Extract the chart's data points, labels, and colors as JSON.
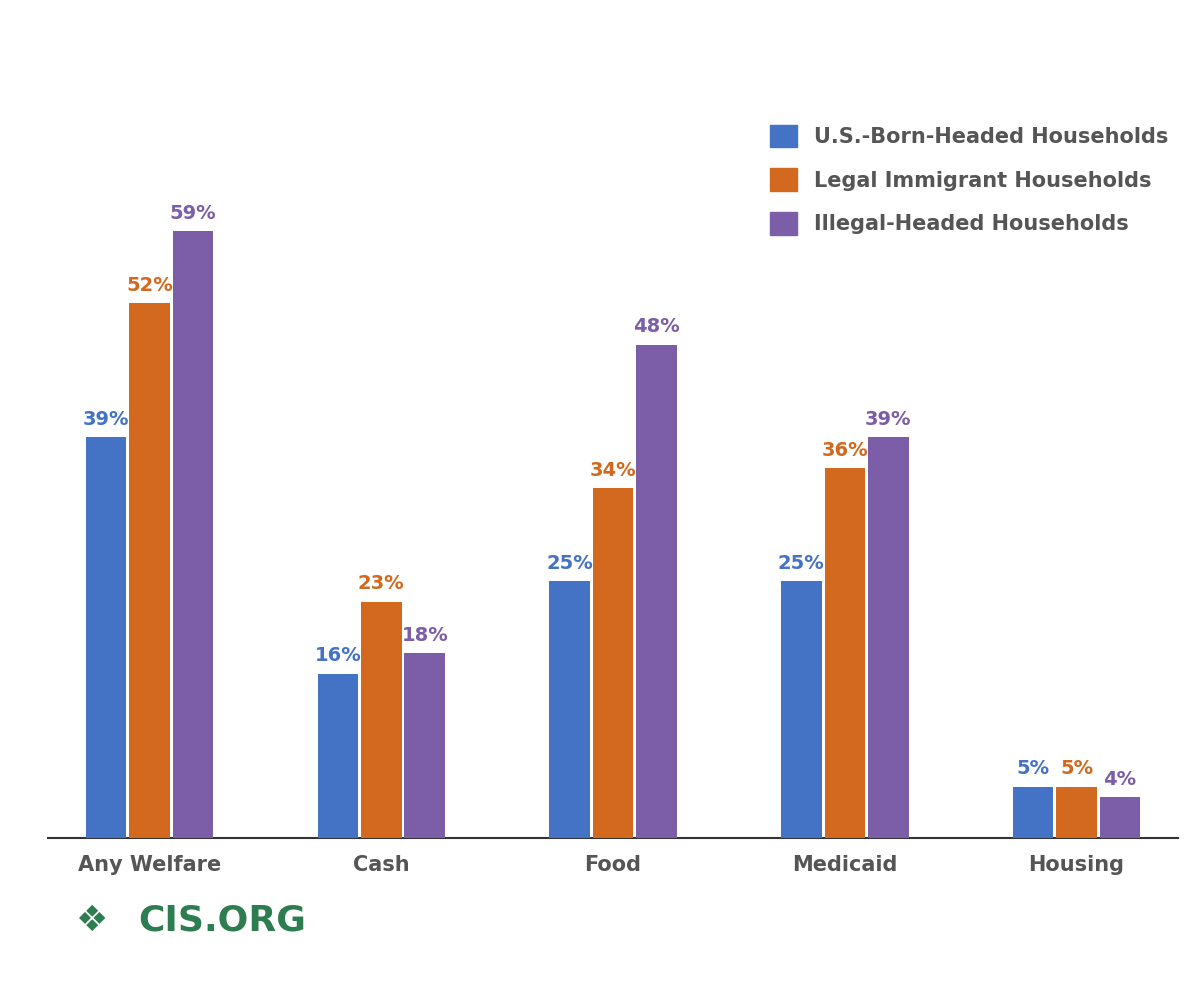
{
  "categories": [
    "Any Welfare",
    "Cash",
    "Food",
    "Medicaid",
    "Housing"
  ],
  "series": {
    "US-Born": [
      39,
      16,
      25,
      25,
      5
    ],
    "Legal Immigrant": [
      52,
      23,
      34,
      36,
      5
    ],
    "Illegal-Headed": [
      59,
      18,
      48,
      39,
      4
    ]
  },
  "colors": {
    "US-Born": "#4472C4",
    "Legal Immigrant": "#D2691E",
    "Illegal-Headed": "#7B5EA7"
  },
  "legend_labels": {
    "US-Born": "U.S.-Born-Headed Households",
    "Legal Immigrant": "Legal Immigrant Households",
    "Illegal-Headed": "Illegal-Headed Households"
  },
  "label_colors": {
    "US-Born": "#4472C4",
    "Legal Immigrant": "#D2691E",
    "Illegal-Headed": "#7B5EA7"
  },
  "bar_width": 0.28,
  "ylim": [
    0,
    70
  ],
  "background_color": "#FFFFFF",
  "logo_text": "CIS.ORG",
  "logo_color": "#2E7D50",
  "label_fontsize": 14,
  "xtick_fontsize": 15,
  "legend_fontsize": 15
}
